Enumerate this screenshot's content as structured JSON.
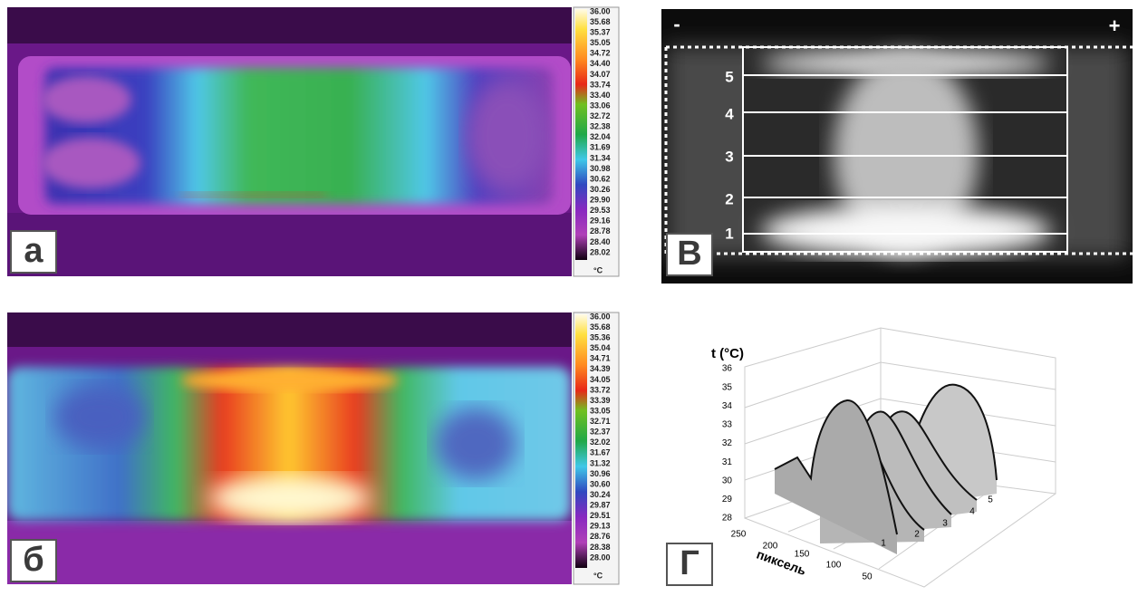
{
  "panels": [
    {
      "label": "а",
      "colorbar": {
        "ticks": [
          "36.00",
          "35.68",
          "35.37",
          "35.05",
          "34.72",
          "34.40",
          "34.07",
          "33.74",
          "33.40",
          "33.06",
          "32.72",
          "32.38",
          "32.04",
          "31.69",
          "31.34",
          "30.98",
          "30.62",
          "30.26",
          "29.90",
          "29.53",
          "29.16",
          "28.78",
          "28.40",
          "28.02"
        ],
        "unit": "°C"
      }
    },
    {
      "label": "б",
      "colorbar": {
        "ticks": [
          "36.00",
          "35.68",
          "35.36",
          "35.04",
          "34.71",
          "34.39",
          "34.05",
          "33.72",
          "33.39",
          "33.05",
          "32.71",
          "32.37",
          "32.02",
          "31.67",
          "31.32",
          "30.96",
          "30.60",
          "30.24",
          "29.87",
          "29.51",
          "29.13",
          "28.76",
          "28.38",
          "28.00"
        ],
        "unit": "°C"
      }
    },
    {
      "label": "В",
      "polarity": [
        "-",
        "+"
      ],
      "zones": [
        "5",
        "4",
        "3",
        "2",
        "1"
      ]
    },
    {
      "label": "Г",
      "y_axis_title": "t (°C)",
      "yticks": [
        "36",
        "35",
        "34",
        "33",
        "32",
        "31",
        "30",
        "29",
        "28"
      ],
      "x_axis_title": "пиксель",
      "xticks": [
        "250",
        "200",
        "150",
        "100",
        "50"
      ],
      "curve_labels": [
        "1",
        "2",
        "3",
        "4",
        "5"
      ]
    }
  ]
}
